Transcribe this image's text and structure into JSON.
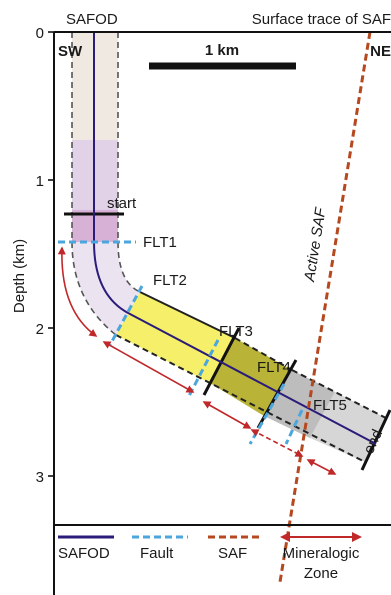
{
  "labels": {
    "safod_top": "SAFOD",
    "surface_trace": "Surface trace of SAF",
    "sw": "SW",
    "ne": "NE",
    "scale": "1 km",
    "start": "start",
    "end": "end",
    "active_saf": "Active SAF",
    "depth_axis": "Depth (km)"
  },
  "depth_ticks": [
    "0",
    "1",
    "2",
    "3"
  ],
  "faults": [
    "FLT1",
    "FLT2",
    "FLT3",
    "FLT4",
    "FLT5"
  ],
  "legend": {
    "safod": "SAFOD",
    "fault": "Fault",
    "saf": "SAF",
    "mineralogic_1": "Mineralogic",
    "mineralogic_2": "Zone"
  },
  "colors": {
    "borehole": "#2b1c7a",
    "fault": "#4aa6dc",
    "saf": "#b5481f",
    "arrow": "#c0282a",
    "zone_beige": "#efe9e1",
    "zone_lavender": "#e2d2e8",
    "zone_pink": "#d8b2d6",
    "zone_pale": "#ebe4f0",
    "zone_yellow": "#f5ef6a",
    "zone_olive": "#b9b338",
    "zone_gray": "#bdbdbd",
    "zone_lightgray": "#d6d6d6"
  }
}
